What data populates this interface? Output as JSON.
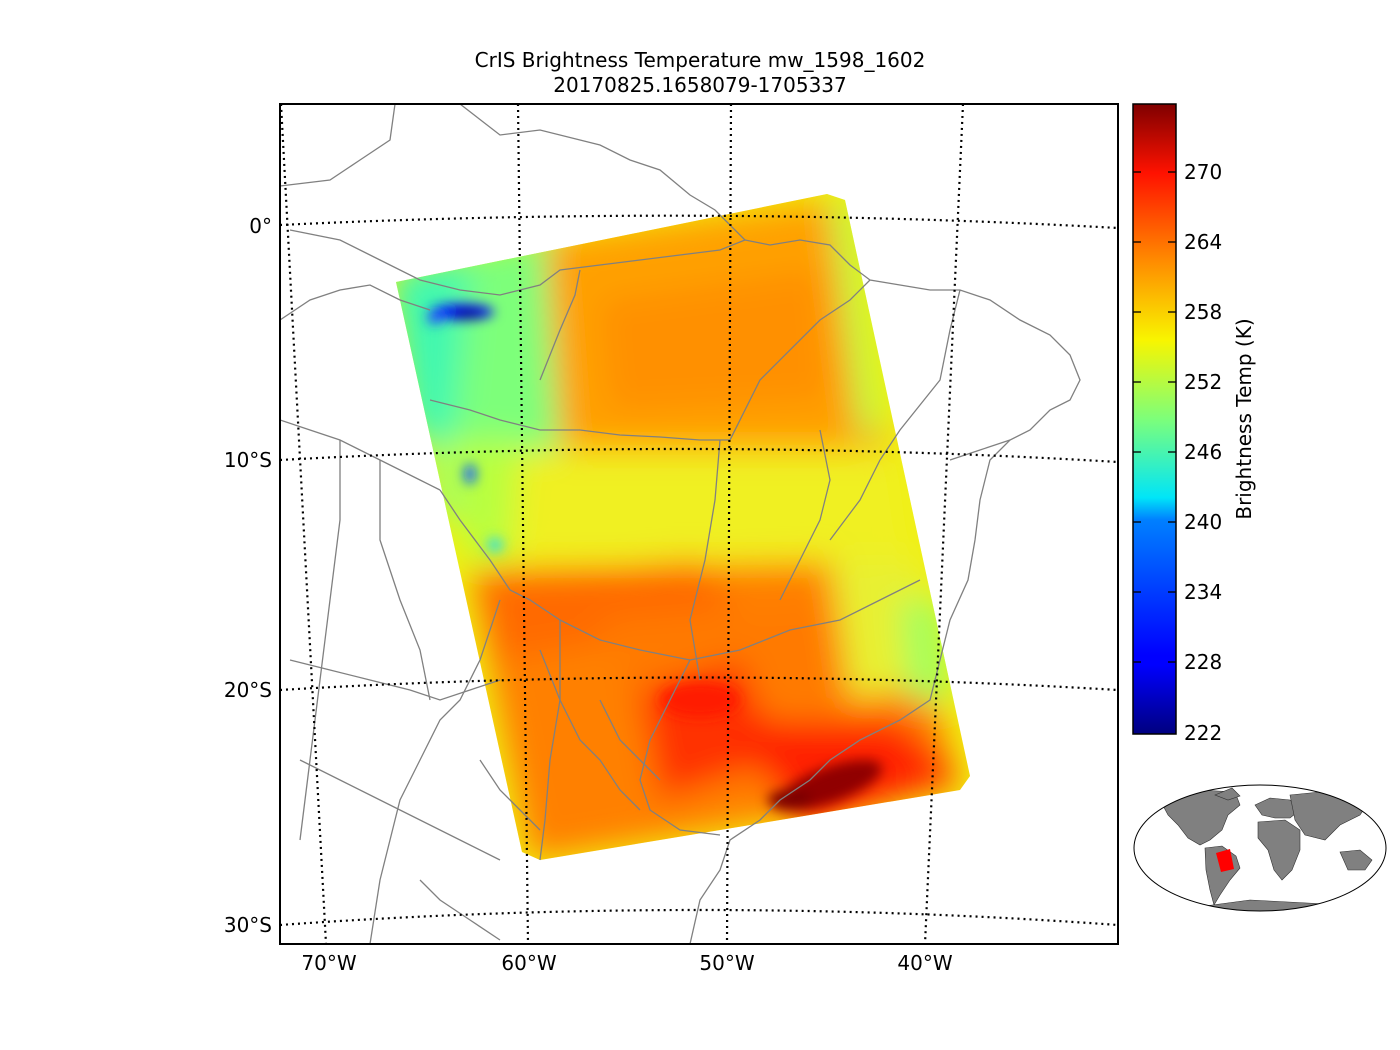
{
  "title": "CrIS Brightness Temperature mw_1598_1602",
  "subtitle": "20170825.1658079-1705337",
  "lat_labels": [
    "0°",
    "10°S",
    "20°S",
    "30°S"
  ],
  "lon_labels": [
    "70°W",
    "60°W",
    "50°W",
    "40°W"
  ],
  "colorbar": {
    "label": "Brightness Temp (K)",
    "ticks": [
      "270",
      "264",
      "258",
      "252",
      "246",
      "240",
      "234",
      "228",
      "222"
    ],
    "min": 222,
    "max": 276,
    "colormap": "jet"
  },
  "colors": {
    "coastline": "#808080",
    "gridline": "#000000",
    "inset_land": "#808080",
    "inset_swath": "#ff0000"
  }
}
